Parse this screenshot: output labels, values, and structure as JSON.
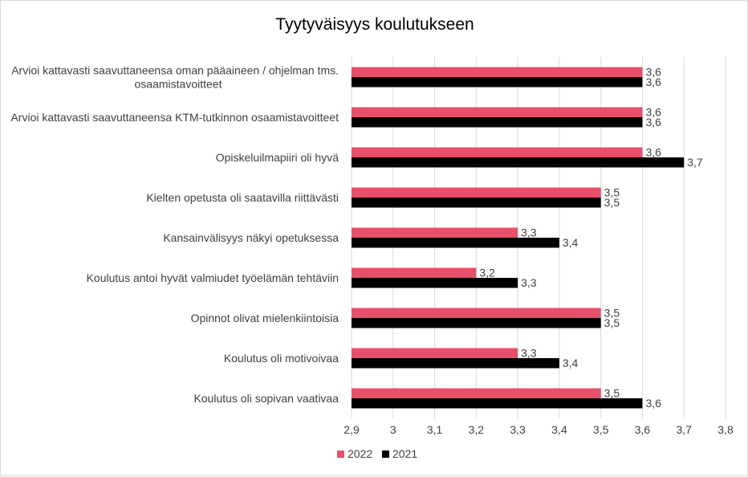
{
  "chart_data": {
    "type": "bar",
    "orientation": "horizontal",
    "title": "Tyytyväisyys koulutukseen",
    "categories": [
      [
        "Arvioi kattavasti saavuttaneensa oman pääaineen / ohjelman tms.",
        "osaamistavoitteet"
      ],
      [
        "Arvioi kattavasti saavuttaneensa KTM-tutkinnon osaamistavoitteet"
      ],
      [
        "Opiskeluilmapiiri oli hyvä"
      ],
      [
        "Kielten opetusta oli saatavilla riittävästi"
      ],
      [
        "Kansainvälisyys näkyi opetuksessa"
      ],
      [
        "Koulutus antoi hyvät valmiudet työelämän tehtäviin"
      ],
      [
        "Opinnot olivat mielenkiintoisia"
      ],
      [
        "Koulutus oli motivoivaa"
      ],
      [
        "Koulutus oli sopivan vaativaa"
      ]
    ],
    "series": [
      {
        "name": "2022",
        "color": "#e8506a",
        "values": [
          3.6,
          3.6,
          3.6,
          3.5,
          3.3,
          3.2,
          3.5,
          3.3,
          3.5
        ],
        "labels": [
          "3,6",
          "3,6",
          "3,6",
          "3,5",
          "3,3",
          "3,2",
          "3,5",
          "3,3",
          "3,5"
        ]
      },
      {
        "name": "2021",
        "color": "#000000",
        "values": [
          3.6,
          3.6,
          3.7,
          3.5,
          3.4,
          3.3,
          3.5,
          3.4,
          3.6
        ],
        "labels": [
          "3,6",
          "3,6",
          "3,7",
          "3,5",
          "3,4",
          "3,3",
          "3,5",
          "3,4",
          "3,6"
        ]
      }
    ],
    "xlim": [
      2.9,
      3.8
    ],
    "xticks": [
      2.9,
      3.0,
      3.1,
      3.2,
      3.3,
      3.4,
      3.5,
      3.6,
      3.7,
      3.8
    ],
    "xtick_labels": [
      "2,9",
      "3",
      "3,1",
      "3,2",
      "3,3",
      "3,4",
      "3,5",
      "3,6",
      "3,7",
      "3,8"
    ],
    "grid": "vertical",
    "legend": "bottom",
    "gridline_color": "#d9d9d9",
    "label_color": "#404040"
  }
}
